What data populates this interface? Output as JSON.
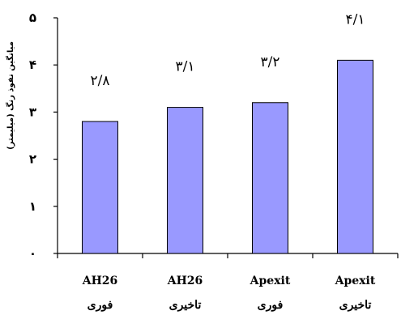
{
  "chart_data": {
    "type": "bar",
    "categories": [
      {
        "line1": "AH26",
        "line2": "فوری"
      },
      {
        "line1": "AH26",
        "line2": "تاخیری"
      },
      {
        "line1": "Apexit",
        "line2": "فوری"
      },
      {
        "line1": "Apexit",
        "line2": "تاخیری"
      }
    ],
    "values": [
      2.8,
      3.1,
      3.2,
      4.1
    ],
    "data_labels": [
      "۲/۸",
      "۳/۱",
      "۳/۲",
      "۴/۱"
    ],
    "ylabel": "میانگین نفوذ رنگ (میلیمتر)",
    "ylim": [
      0,
      5
    ],
    "yticks": [
      {
        "value": 0,
        "label": "۰"
      },
      {
        "value": 1,
        "label": "۱"
      },
      {
        "value": 2,
        "label": "۲"
      },
      {
        "value": 3,
        "label": "۳"
      },
      {
        "value": 4,
        "label": "۴"
      },
      {
        "value": 5,
        "label": "۵"
      }
    ],
    "bar_color": "#9999ff",
    "bar_edge_color": "#000000",
    "grid": false,
    "legend": "none"
  }
}
